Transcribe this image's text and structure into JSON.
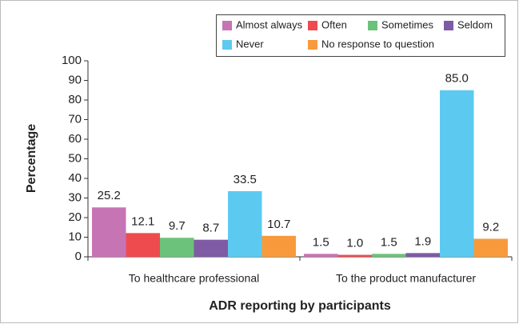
{
  "chart_data": {
    "type": "bar",
    "x_label": "ADR reporting by participants",
    "y_label": "Percentage",
    "categories": [
      "To healthcare professional",
      "To the product manufacturer"
    ],
    "series": [
      {
        "name": "Almost always",
        "color": "#c774b4",
        "values": [
          25.2,
          1.5
        ],
        "value_labels": [
          "25.2",
          "1.5"
        ]
      },
      {
        "name": "Often",
        "color": "#ee4b4f",
        "values": [
          12.1,
          1.0
        ],
        "value_labels": [
          "12.1",
          "1.0"
        ]
      },
      {
        "name": "Sometimes",
        "color": "#6cc27a",
        "values": [
          9.7,
          1.5
        ],
        "value_labels": [
          "9.7",
          "1.5"
        ]
      },
      {
        "name": "Seldom",
        "color": "#7e5ba4",
        "values": [
          8.7,
          1.9
        ],
        "value_labels": [
          "8.7",
          "1.9"
        ]
      },
      {
        "name": "Never",
        "color": "#5ccaf0",
        "values": [
          33.5,
          85.0
        ],
        "value_labels": [
          "33.5",
          "85.0"
        ]
      },
      {
        "name": "No response to question",
        "color": "#f89a3c",
        "values": [
          10.7,
          9.2
        ],
        "value_labels": [
          "10.7",
          "9.2"
        ]
      }
    ],
    "ylim": [
      0,
      100
    ],
    "yticks": [
      0,
      10,
      20,
      30,
      40,
      50,
      60,
      70,
      80,
      90,
      100
    ],
    "legend": "top-right"
  }
}
